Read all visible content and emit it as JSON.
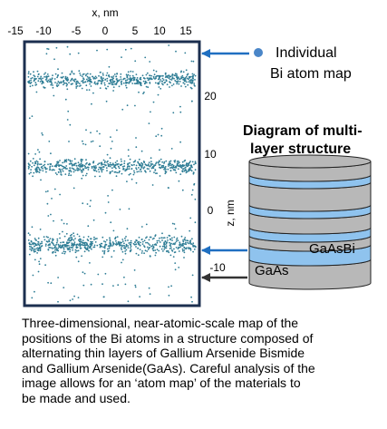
{
  "map": {
    "x_axis_label": "x, nm",
    "x_ticks": [
      "-15",
      "-10",
      "-5",
      "0",
      "5",
      "10",
      "15"
    ],
    "z_axis_label": "z, nm",
    "z_ticks": [
      "20",
      "10",
      "0",
      "-10"
    ]
  },
  "labels": {
    "individual_line1": "Individual",
    "individual_line2": "Bi atom map",
    "diagram_title_line1": "Diagram of multi-",
    "diagram_title_line2": "layer structure",
    "gaasbi": "GaAsBi",
    "gaas": "GaAs"
  },
  "colors": {
    "atom_dot": "#2e7d95",
    "legend_dot": "#4a86c8",
    "arrow_blue": "#1f6fc1",
    "arrow_dark": "#333333",
    "layer_blue": "#8fc3ee",
    "layer_gray": "#b8b8b8",
    "map_border": "#1c2f4f"
  },
  "caption": {
    "line1": "Three-dimensional, near-atomic-scale map of the",
    "line2": "positions of the Bi atoms in a structure  composed of",
    "line3": "alternating thin layers of Gallium Arsenide Bismide",
    "line4": "and Gallium Arsenide(GaAs).  Careful analysis of the",
    "line5": "image allows for an ‘atom map’ of the materials to",
    "line6": "be made and used."
  }
}
